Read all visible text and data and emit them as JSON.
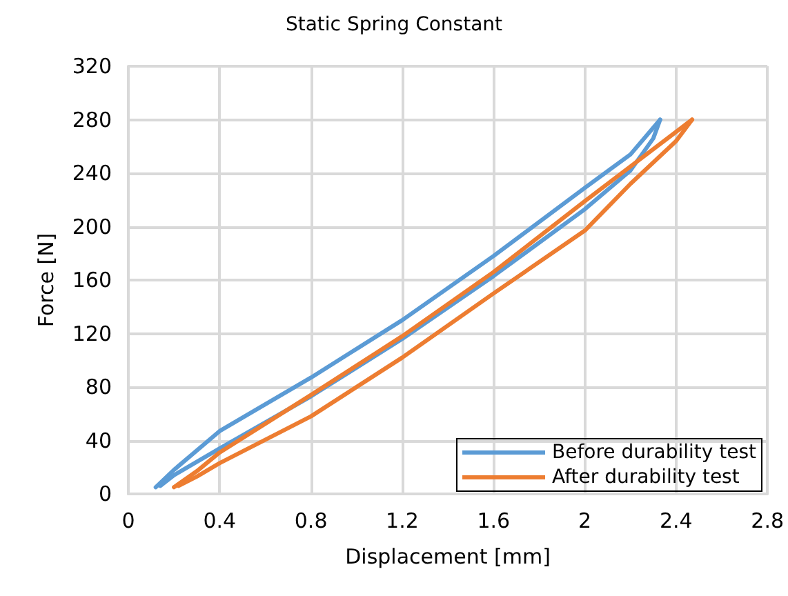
{
  "chart_data": {
    "type": "line",
    "title": "Static Spring Constant",
    "xlabel": "Displacement [mm]",
    "ylabel": "Force [N]",
    "xlim": [
      0,
      2.8
    ],
    "xticks": [
      0,
      0.4,
      0.8,
      1.2,
      1.6,
      2,
      2.4,
      2.8
    ],
    "ylim": [
      0,
      320
    ],
    "yticks": [
      0,
      40,
      80,
      120,
      160,
      200,
      240,
      280,
      320
    ],
    "grid": true,
    "legend": "bottom right",
    "marker": "none",
    "line_style": "solid",
    "series": [
      {
        "name": "Before durability test",
        "color": "#5b9bd5",
        "x": [
          0.12,
          0.2,
          0.4,
          0.8,
          1.2,
          1.6,
          2.0,
          2.2,
          2.33
        ],
        "values": [
          5,
          18,
          47,
          87,
          130,
          178,
          229,
          254,
          280
        ]
      },
      {
        "color": "#5b9bd5",
        "x": [
          0.14,
          0.2,
          0.4,
          0.8,
          1.2,
          1.6,
          2.0,
          2.2,
          2.3,
          2.33
        ],
        "values": [
          6,
          14,
          34,
          73,
          116,
          163,
          213,
          242,
          266,
          280
        ]
      },
      {
        "name": "After durability test",
        "color": "#ed7d31",
        "x": [
          0.2,
          0.3,
          0.4,
          0.8,
          1.2,
          1.6,
          2.0,
          2.2,
          2.47
        ],
        "values": [
          5,
          17,
          31,
          74,
          118,
          166,
          219,
          245,
          280
        ]
      },
      {
        "color": "#ed7d31",
        "x": [
          0.22,
          0.3,
          0.4,
          0.8,
          1.2,
          1.6,
          2.0,
          2.2,
          2.4,
          2.47
        ],
        "values": [
          6,
          13,
          23,
          58,
          102,
          150,
          197,
          232,
          264,
          280
        ]
      }
    ]
  }
}
